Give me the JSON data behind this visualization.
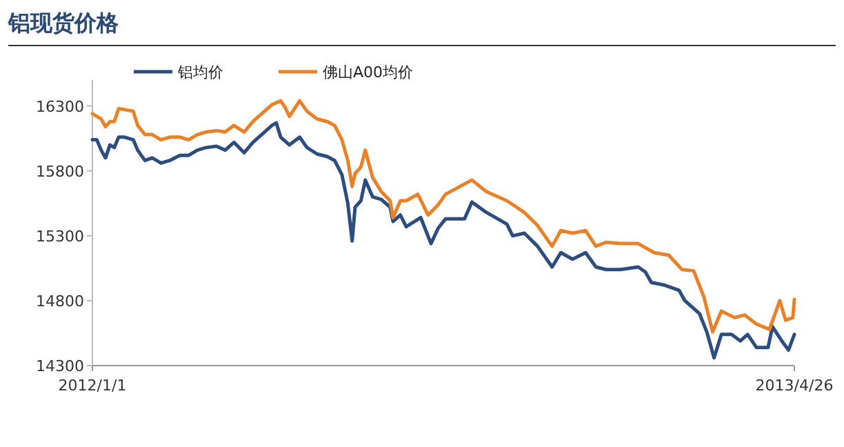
{
  "chart_data": {
    "type": "line",
    "title": "铝现货价格",
    "ylim": [
      14300,
      16500
    ],
    "yticks": [
      14300,
      14800,
      15300,
      15800,
      16300
    ],
    "xlim": [
      "2012-01-01",
      "2013-04-26"
    ],
    "xticks": [
      {
        "value": "2012-01-01",
        "label": "2012/1/1"
      },
      {
        "value": "2013-04-26",
        "label": "2013/4/26"
      }
    ],
    "grid": false,
    "legend": "top",
    "marker": "none",
    "line_style": "solid",
    "series": [
      {
        "name": "铝均价",
        "color": "#2e4d7f",
        "x": [
          "2012-01-01",
          "2012-01-04",
          "2012-01-07",
          "2012-01-10",
          "2012-01-13",
          "2012-01-16",
          "2012-01-19",
          "2012-01-23",
          "2012-01-29",
          "2012-02-01",
          "2012-02-06",
          "2012-02-11",
          "2012-02-17",
          "2012-02-23",
          "2012-03-01",
          "2012-03-07",
          "2012-03-13",
          "2012-03-19",
          "2012-03-26",
          "2012-04-01",
          "2012-04-07",
          "2012-04-14",
          "2012-04-20",
          "2012-04-26",
          "2012-05-03",
          "2012-05-06",
          "2012-05-09",
          "2012-05-15",
          "2012-05-22",
          "2012-05-27",
          "2012-06-03",
          "2012-06-10",
          "2012-06-15",
          "2012-06-20",
          "2012-06-24",
          "2012-06-27",
          "2012-06-29",
          "2012-07-03",
          "2012-07-06",
          "2012-07-11",
          "2012-07-17",
          "2012-07-23",
          "2012-07-25",
          "2012-07-30",
          "2012-08-03",
          "2012-08-13",
          "2012-08-20",
          "2012-08-25",
          "2012-08-30",
          "2012-09-12",
          "2012-09-17",
          "2012-09-27",
          "2012-10-11",
          "2012-10-15",
          "2012-10-23",
          "2012-11-01",
          "2012-11-11",
          "2012-11-17",
          "2012-11-25",
          "2012-12-04",
          "2012-12-11",
          "2012-12-18",
          "2012-12-28",
          "2013-01-09",
          "2013-01-14",
          "2013-01-18",
          "2013-01-27",
          "2013-02-06",
          "2013-02-10",
          "2013-02-20",
          "2013-02-25",
          "2013-03-02",
          "2013-03-07",
          "2013-03-14",
          "2013-03-20",
          "2013-03-25",
          "2013-03-31",
          "2013-04-08",
          "2013-04-11",
          "2013-04-18",
          "2013-04-22",
          "2013-04-26"
        ],
        "values": [
          16040,
          16040,
          15960,
          15900,
          16000,
          15980,
          16060,
          16060,
          16040,
          15960,
          15880,
          15900,
          15860,
          15880,
          15920,
          15920,
          15960,
          15980,
          15990,
          15960,
          16020,
          15940,
          16020,
          16080,
          16150,
          16170,
          16060,
          16000,
          16060,
          15980,
          15930,
          15910,
          15880,
          15770,
          15550,
          15260,
          15520,
          15570,
          15730,
          15600,
          15580,
          15520,
          15410,
          15460,
          15370,
          15440,
          15240,
          15360,
          15430,
          15430,
          15560,
          15480,
          15390,
          15300,
          15320,
          15220,
          15060,
          15170,
          15120,
          15170,
          15060,
          15040,
          15040,
          15060,
          15020,
          14940,
          14920,
          14880,
          14800,
          14700,
          14560,
          14360,
          14540,
          14540,
          14490,
          14540,
          14440,
          14440,
          14600,
          14480,
          14420,
          14540
        ]
      },
      {
        "name": "佛山A00均价",
        "color": "#e8822a",
        "x": [
          "2012-01-01",
          "2012-01-07",
          "2012-01-10",
          "2012-01-13",
          "2012-01-16",
          "2012-01-19",
          "2012-01-29",
          "2012-02-01",
          "2012-02-06",
          "2012-02-11",
          "2012-02-17",
          "2012-02-23",
          "2012-03-01",
          "2012-03-07",
          "2012-03-13",
          "2012-03-19",
          "2012-03-26",
          "2012-04-01",
          "2012-04-07",
          "2012-04-14",
          "2012-04-20",
          "2012-04-26",
          "2012-05-03",
          "2012-05-09",
          "2012-05-12",
          "2012-05-15",
          "2012-05-22",
          "2012-05-27",
          "2012-06-03",
          "2012-06-10",
          "2012-06-15",
          "2012-06-20",
          "2012-06-24",
          "2012-06-27",
          "2012-06-29",
          "2012-07-03",
          "2012-07-06",
          "2012-07-11",
          "2012-07-17",
          "2012-07-23",
          "2012-07-25",
          "2012-07-30",
          "2012-08-03",
          "2012-08-11",
          "2012-08-18",
          "2012-08-25",
          "2012-08-30",
          "2012-09-17",
          "2012-09-27",
          "2012-10-11",
          "2012-10-23",
          "2012-11-01",
          "2012-11-11",
          "2012-11-17",
          "2012-11-25",
          "2012-12-04",
          "2012-12-11",
          "2012-12-18",
          "2012-12-28",
          "2013-01-09",
          "2013-01-20",
          "2013-01-30",
          "2013-02-08",
          "2013-02-16",
          "2013-02-23",
          "2013-03-01",
          "2013-03-07",
          "2013-03-16",
          "2013-03-23",
          "2013-03-31",
          "2013-04-09",
          "2013-04-16",
          "2013-04-20",
          "2013-04-25",
          "2013-04-26"
        ],
        "values": [
          16240,
          16200,
          16140,
          16180,
          16180,
          16280,
          16260,
          16150,
          16080,
          16080,
          16040,
          16060,
          16060,
          16040,
          16080,
          16100,
          16110,
          16100,
          16150,
          16100,
          16180,
          16240,
          16310,
          16340,
          16290,
          16220,
          16340,
          16260,
          16200,
          16180,
          16150,
          16040,
          15880,
          15680,
          15780,
          15830,
          15960,
          15750,
          15640,
          15570,
          15440,
          15570,
          15570,
          15620,
          15460,
          15540,
          15620,
          15730,
          15640,
          15570,
          15480,
          15380,
          15220,
          15340,
          15320,
          15340,
          15220,
          15250,
          15240,
          15240,
          15170,
          15150,
          15040,
          15030,
          14830,
          14560,
          14720,
          14670,
          14690,
          14620,
          14580,
          14800,
          14650,
          14670,
          14810
        ]
      }
    ]
  }
}
